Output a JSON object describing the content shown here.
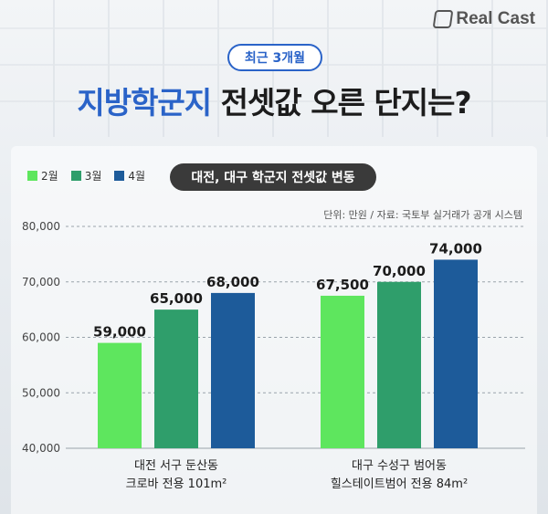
{
  "brand": {
    "name": "Real Cast"
  },
  "header": {
    "badge": "최근 3개월",
    "title_highlight": "지방학군지",
    "title_rest": " 전셋값 오른 단지는?"
  },
  "chart_box": {
    "title": "대전, 대구 학군지 전셋값 변동",
    "source": "단위: 만원 / 자료: 국토부 실거래가 공개 시스템"
  },
  "colors": {
    "accent": "#2a63c8",
    "feb": "#5ee65e",
    "mar": "#2f9e6b",
    "apr": "#1d5b9a"
  },
  "chart_data": {
    "type": "bar",
    "categories": [
      [
        "대전 서구 둔산동",
        "크로바 전용 101m²"
      ],
      [
        "대구 수성구 범어동",
        "힐스테이트범어 전용 84m²"
      ]
    ],
    "series": [
      {
        "name": "2월",
        "values": [
          59000,
          67500
        ],
        "labels": [
          "59,000",
          "67,500"
        ]
      },
      {
        "name": "3월",
        "values": [
          65000,
          70000
        ],
        "labels": [
          "65,000",
          "70,000"
        ]
      },
      {
        "name": "4월",
        "values": [
          68000,
          74000
        ],
        "labels": [
          "68,000",
          "74,000"
        ]
      }
    ],
    "y_ticks": [
      "40,000",
      "50,000",
      "60,000",
      "70,000",
      "80,000"
    ],
    "ylim": [
      40000,
      80000
    ],
    "grid": "dashed horizontal",
    "legend": "top-left"
  }
}
